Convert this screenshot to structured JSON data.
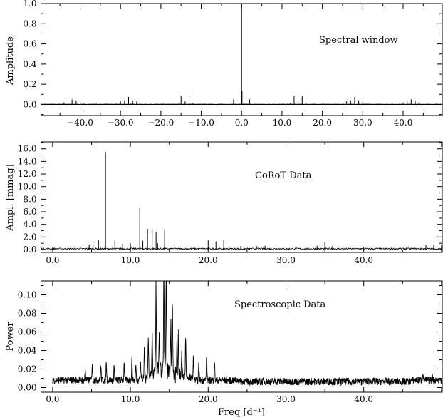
{
  "chart_data": [
    {
      "type": "line",
      "annotation": "Spectral window",
      "xlabel": "",
      "ylabel": "Amplitude",
      "xlim": [
        -49.7,
        49.7
      ],
      "ylim": [
        -0.11,
        1.0
      ],
      "xticks": [
        -40,
        -30,
        -20,
        -10,
        0,
        10,
        20,
        30,
        40
      ],
      "xtick_labels": [
        "−40.0",
        "−30.0",
        "−20.0",
        "−10.0",
        "0.0",
        "10.0",
        "20.0",
        "30.0",
        "40.0"
      ],
      "yticks": [
        0,
        0.2,
        0.4,
        0.6,
        0.8,
        1.0
      ],
      "ytick_labels": [
        "0.0",
        "0.2",
        "0.4",
        "0.6",
        "0.8",
        "1.0"
      ],
      "style": "stick",
      "baseline_noise": 0.004,
      "peaks": [
        {
          "x": 0,
          "y": 1.0
        },
        {
          "x": 0.1,
          "y": 0.13
        },
        {
          "x": -0.1,
          "y": 0.1
        },
        {
          "x": 2.0,
          "y": 0.05
        },
        {
          "x": -2.0,
          "y": 0.05
        },
        {
          "x": 13.0,
          "y": 0.085
        },
        {
          "x": 15.0,
          "y": 0.085
        },
        {
          "x": 14.0,
          "y": 0.03
        },
        {
          "x": 12.0,
          "y": 0.015
        },
        {
          "x": 16.0,
          "y": 0.015
        },
        {
          "x": -13.0,
          "y": 0.085
        },
        {
          "x": -15.0,
          "y": 0.085
        },
        {
          "x": -14.0,
          "y": 0.03
        },
        {
          "x": -12.0,
          "y": 0.015
        },
        {
          "x": -16.0,
          "y": 0.015
        },
        {
          "x": 28.0,
          "y": 0.075
        },
        {
          "x": 27.0,
          "y": 0.04
        },
        {
          "x": 29.0,
          "y": 0.04
        },
        {
          "x": 26.0,
          "y": 0.03
        },
        {
          "x": 30.0,
          "y": 0.03
        },
        {
          "x": -28.0,
          "y": 0.075
        },
        {
          "x": -27.0,
          "y": 0.04
        },
        {
          "x": -29.0,
          "y": 0.04
        },
        {
          "x": -26.0,
          "y": 0.03
        },
        {
          "x": -30.0,
          "y": 0.03
        },
        {
          "x": 42.0,
          "y": 0.05
        },
        {
          "x": 41.0,
          "y": 0.04
        },
        {
          "x": 43.0,
          "y": 0.04
        },
        {
          "x": 40.0,
          "y": 0.02
        },
        {
          "x": 44.0,
          "y": 0.02
        },
        {
          "x": -42.0,
          "y": 0.05
        },
        {
          "x": -41.0,
          "y": 0.04
        },
        {
          "x": -43.0,
          "y": 0.04
        },
        {
          "x": -40.0,
          "y": 0.02
        },
        {
          "x": -44.0,
          "y": 0.02
        }
      ]
    },
    {
      "type": "line",
      "annotation": "CoRoT Data",
      "xlabel": "",
      "ylabel": "Ampl. [mmag]",
      "xlim": [
        -1.5,
        50.1
      ],
      "ylim": [
        -0.45,
        17.1
      ],
      "xticks": [
        0,
        10,
        20,
        30,
        40
      ],
      "xtick_labels": [
        "0.0",
        "10.0",
        "20.0",
        "30.0",
        "40.0"
      ],
      "yticks": [
        0,
        2,
        4,
        6,
        8,
        10,
        12,
        14,
        16
      ],
      "ytick_labels": [
        "0.0",
        "2.0",
        "4.0",
        "6.0",
        "8.0",
        "10.0",
        "12.0",
        "14.0",
        "16.0"
      ],
      "style": "stick",
      "baseline_noise": 0.25,
      "peaks": [
        {
          "x": 6.8,
          "y": 15.5
        },
        {
          "x": 11.2,
          "y": 6.7
        },
        {
          "x": 12.2,
          "y": 3.3
        },
        {
          "x": 12.8,
          "y": 3.3
        },
        {
          "x": 13.3,
          "y": 2.8
        },
        {
          "x": 14.4,
          "y": 3.2
        },
        {
          "x": 13.5,
          "y": 1.0
        },
        {
          "x": 11.6,
          "y": 1.4
        },
        {
          "x": 5.9,
          "y": 1.5
        },
        {
          "x": 5.2,
          "y": 1.2
        },
        {
          "x": 4.7,
          "y": 0.8
        },
        {
          "x": 8.0,
          "y": 1.4
        },
        {
          "x": 9.0,
          "y": 0.9
        },
        {
          "x": 10.0,
          "y": 1.0
        },
        {
          "x": 20.0,
          "y": 1.5
        },
        {
          "x": 21.0,
          "y": 1.3
        },
        {
          "x": 22.0,
          "y": 1.5
        },
        {
          "x": 24.2,
          "y": 0.6
        },
        {
          "x": 26.2,
          "y": 0.6
        },
        {
          "x": 27.3,
          "y": 0.6
        },
        {
          "x": 34.0,
          "y": 0.6
        },
        {
          "x": 35.0,
          "y": 1.2
        },
        {
          "x": 36.0,
          "y": 0.6
        },
        {
          "x": 48.0,
          "y": 0.7
        },
        {
          "x": 49.0,
          "y": 0.8
        },
        {
          "x": 50.0,
          "y": 0.7
        }
      ]
    },
    {
      "type": "line",
      "annotation": "Spectroscopic Data",
      "xlabel": "Freq [d⁻¹]",
      "ylabel": "Power",
      "xlim": [
        -1.5,
        50.1
      ],
      "ylim": [
        -0.005,
        0.115
      ],
      "xticks": [
        0,
        10,
        20,
        30,
        40
      ],
      "xtick_labels": [
        "0.0",
        "10.0",
        "20.0",
        "30.0",
        "40.0"
      ],
      "yticks": [
        0,
        0.02,
        0.04,
        0.06,
        0.08,
        0.1
      ],
      "ytick_labels": [
        "0.00",
        "0.02",
        "0.04",
        "0.06",
        "0.08",
        "0.10"
      ],
      "style": "continuous",
      "baseline": 0.008,
      "baseline_noise": 0.004,
      "peaks": [
        {
          "x": 13.3,
          "y": 0.1
        },
        {
          "x": 14.3,
          "y": 0.11
        },
        {
          "x": 14.6,
          "y": 0.108
        },
        {
          "x": 15.4,
          "y": 0.087
        },
        {
          "x": 15.2,
          "y": 0.066
        },
        {
          "x": 12.8,
          "y": 0.052
        },
        {
          "x": 12.3,
          "y": 0.048
        },
        {
          "x": 11.8,
          "y": 0.038
        },
        {
          "x": 13.7,
          "y": 0.05
        },
        {
          "x": 16.2,
          "y": 0.054
        },
        {
          "x": 16.0,
          "y": 0.047
        },
        {
          "x": 17.1,
          "y": 0.049
        },
        {
          "x": 16.6,
          "y": 0.04
        },
        {
          "x": 18.1,
          "y": 0.032
        },
        {
          "x": 18.8,
          "y": 0.025
        },
        {
          "x": 19.8,
          "y": 0.034
        },
        {
          "x": 20.8,
          "y": 0.03
        },
        {
          "x": 10.2,
          "y": 0.031
        },
        {
          "x": 9.2,
          "y": 0.027
        },
        {
          "x": 11.3,
          "y": 0.027
        },
        {
          "x": 10.7,
          "y": 0.024
        },
        {
          "x": 5.1,
          "y": 0.027
        },
        {
          "x": 6.9,
          "y": 0.027
        },
        {
          "x": 6.2,
          "y": 0.023
        },
        {
          "x": 7.9,
          "y": 0.023
        },
        {
          "x": 4.2,
          "y": 0.019
        },
        {
          "x": 47.6,
          "y": 0.017
        },
        {
          "x": 48.8,
          "y": 0.016
        }
      ]
    }
  ]
}
